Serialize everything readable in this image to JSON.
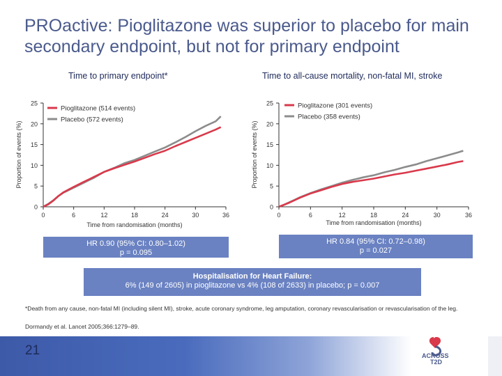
{
  "title": "PROactive: Pioglitazone was superior to placebo for main secondary endpoint, but not for primary endpoint",
  "colors": {
    "pioglitazone": "#d9394b",
    "placebo": "#8c8c8c",
    "box": "#6a82c2",
    "title": "#4a5a8c"
  },
  "chart_data": [
    {
      "type": "line",
      "title": "Time to primary endpoint*",
      "xlabel": "Time from randomisation (months)",
      "ylabel": "Proportion of events (%)",
      "xlim": [
        0,
        36
      ],
      "ylim": [
        0,
        25
      ],
      "xticks": [
        "0",
        "6",
        "12",
        "18",
        "24",
        "30",
        "36"
      ],
      "yticks": [
        "0",
        "5",
        "10",
        "15",
        "20",
        "25"
      ],
      "legend": [
        "Pioglitazone (514 events)",
        "Placebo (572 events)"
      ],
      "series": [
        {
          "name": "Pioglitazone (514 events)",
          "x": [
            0,
            1,
            2,
            3,
            4,
            6,
            8,
            10,
            12,
            14,
            16,
            18,
            20,
            22,
            24,
            26,
            28,
            30,
            32,
            34,
            35
          ],
          "y": [
            0,
            0.6,
            1.5,
            2.6,
            3.5,
            4.8,
            6.0,
            7.2,
            8.4,
            9.3,
            10.1,
            10.9,
            11.8,
            12.7,
            13.5,
            14.6,
            15.6,
            16.6,
            17.6,
            18.6,
            19.2
          ]
        },
        {
          "name": "Placebo (572 events)",
          "x": [
            0,
            1,
            2,
            3,
            4,
            6,
            8,
            10,
            12,
            14,
            16,
            18,
            20,
            22,
            24,
            26,
            28,
            30,
            32,
            34,
            35
          ],
          "y": [
            0,
            0.7,
            1.6,
            2.6,
            3.4,
            4.6,
            5.8,
            7.0,
            8.4,
            9.4,
            10.5,
            11.3,
            12.3,
            13.3,
            14.3,
            15.5,
            16.8,
            18.2,
            19.5,
            20.6,
            21.8
          ]
        }
      ]
    },
    {
      "type": "line",
      "title": "Time to all-cause mortality, non-fatal MI, stroke",
      "xlabel": "Time from randomisation (months)",
      "ylabel": "Proportion of events (%)",
      "xlim": [
        0,
        36
      ],
      "ylim": [
        0,
        25
      ],
      "xticks": [
        "0",
        "6",
        "12",
        "18",
        "24",
        "30",
        "36"
      ],
      "yticks": [
        "0",
        "5",
        "10",
        "15",
        "20",
        "25"
      ],
      "legend": [
        "Pioglitazone (301 events)",
        "Placebo (358 events)"
      ],
      "series": [
        {
          "name": "Pioglitazone (301 events)",
          "x": [
            0,
            1,
            2,
            3,
            4,
            6,
            8,
            10,
            12,
            14,
            16,
            18,
            20,
            22,
            24,
            26,
            28,
            30,
            32,
            34,
            35
          ],
          "y": [
            0,
            0.5,
            1.0,
            1.6,
            2.2,
            3.2,
            4.0,
            4.8,
            5.5,
            6.0,
            6.4,
            6.8,
            7.3,
            7.8,
            8.2,
            8.7,
            9.2,
            9.7,
            10.2,
            10.8,
            11.0
          ]
        },
        {
          "name": "Placebo (358 events)",
          "x": [
            0,
            1,
            2,
            3,
            4,
            6,
            8,
            10,
            12,
            14,
            16,
            18,
            20,
            22,
            24,
            26,
            28,
            30,
            32,
            34,
            35
          ],
          "y": [
            0,
            0.5,
            1.1,
            1.7,
            2.3,
            3.3,
            4.2,
            5.0,
            5.8,
            6.5,
            7.1,
            7.6,
            8.3,
            8.9,
            9.6,
            10.2,
            11.0,
            11.7,
            12.4,
            13.1,
            13.5
          ]
        }
      ]
    }
  ],
  "hr_left": {
    "line1": "HR 0.90 (95% CI: 0.80–1.02)",
    "line2": "p = 0.095"
  },
  "hr_right": {
    "line1": "HR 0.84 (95% CI: 0.72–0.98)",
    "line2": "p = 0.027"
  },
  "hhf": {
    "heading": "Hospitalisation for Heart Failure:",
    "text": "6% (149 of 2605) in pioglitazone vs 4% (108 of 2633) in placebo; p = 0.007"
  },
  "footnote": "*Death from any cause, non-fatal MI (including silent MI), stroke, acute coronary syndrome, leg amputation, coronary revascularisation or revascularisation of the leg.",
  "reference": "Dormandy et al. Lancet 2005;366:1279–89.",
  "page_number": "21",
  "logo": {
    "name": "ACROSS T2D",
    "line1": "ACROSS",
    "line2": "T2D"
  }
}
